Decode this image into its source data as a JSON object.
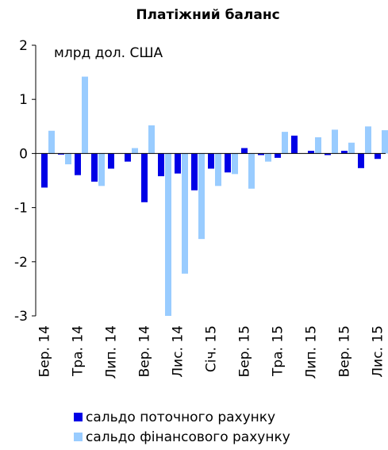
{
  "chart_data": {
    "type": "bar",
    "title": "Платіжний баланс",
    "annotation": "млрд дол. США",
    "categories": [
      "Бер. 14",
      null,
      "Тра. 14",
      null,
      "Лип. 14",
      null,
      "Вер. 14",
      null,
      "Лис. 14",
      null,
      "Січ. 15",
      null,
      "Бер. 15",
      null,
      "Тра. 15",
      null,
      "Лип. 15",
      null,
      "Вер. 15",
      null,
      "Лис. 15"
    ],
    "series": [
      {
        "name": "сальдо поточного рахунку",
        "color": "#0000e6",
        "values": [
          -0.63,
          -0.02,
          -0.4,
          -0.52,
          -0.28,
          -0.15,
          -0.9,
          -0.42,
          -0.37,
          -0.68,
          -0.28,
          -0.35,
          0.1,
          -0.03,
          -0.08,
          0.33,
          0.05,
          -0.03,
          0.05,
          -0.27,
          -0.1
        ]
      },
      {
        "name": "сальдо фінансового рахунку",
        "color": "#99ccff",
        "values": [
          0.42,
          -0.2,
          1.42,
          -0.6,
          0,
          0.1,
          0.52,
          -3.0,
          -2.22,
          -1.58,
          -0.6,
          -0.38,
          -0.65,
          -0.15,
          0.4,
          0,
          0.3,
          0.44,
          0.2,
          0.5,
          0.43
        ]
      }
    ],
    "ylim": [
      -3,
      2
    ],
    "yticks": [
      -3,
      -2,
      -1,
      0,
      1,
      2
    ]
  }
}
